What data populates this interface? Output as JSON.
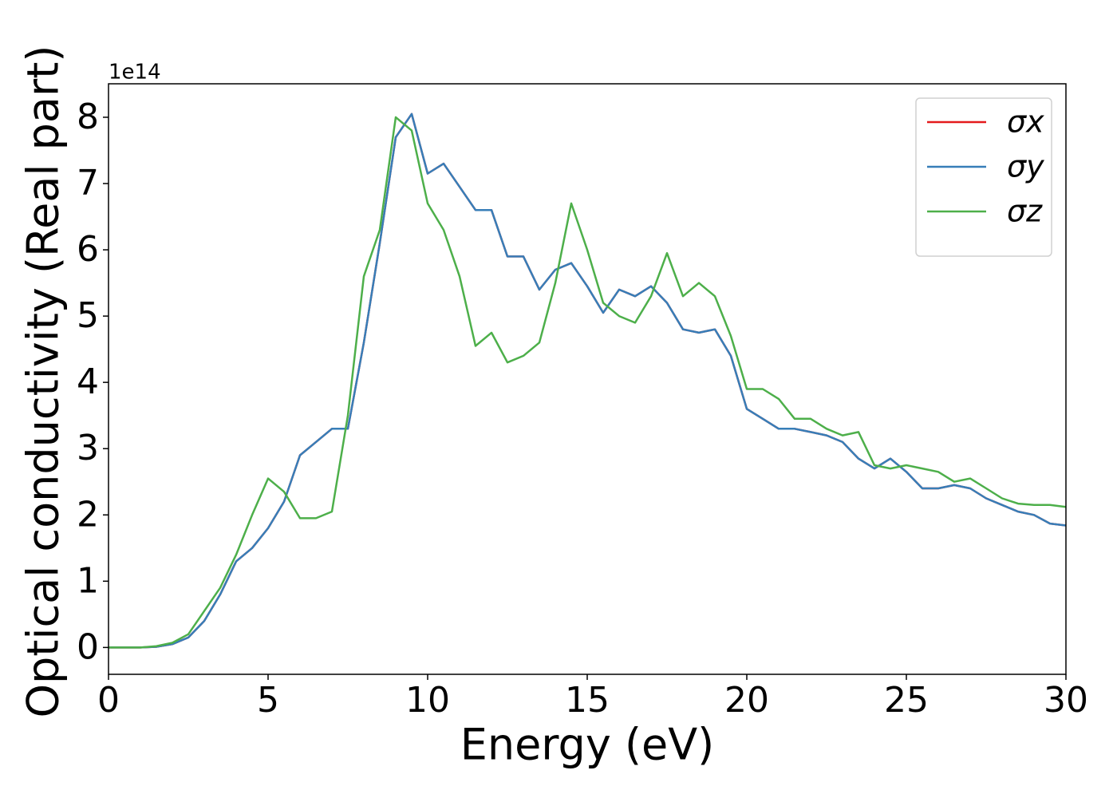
{
  "chart_data": {
    "type": "line",
    "xlabel": "Energy (eV)",
    "ylabel": "Optical conductivity (Real part)",
    "y_offset_label": "1e14",
    "x": [
      0,
      0.5,
      1,
      1.5,
      2,
      2.5,
      3,
      3.5,
      4,
      4.5,
      5,
      5.5,
      6,
      6.5,
      7,
      7.5,
      8,
      8.5,
      9,
      9.5,
      10,
      10.5,
      11,
      11.5,
      12,
      12.5,
      13,
      13.5,
      14,
      14.5,
      15,
      15.5,
      16,
      16.5,
      17,
      17.5,
      18,
      18.5,
      19,
      19.5,
      20,
      20.5,
      21,
      21.5,
      22,
      22.5,
      23,
      23.5,
      24,
      24.5,
      25,
      25.5,
      26,
      26.5,
      27,
      27.5,
      28,
      28.5,
      29,
      29.5,
      30
    ],
    "series": [
      {
        "name": "σx",
        "color": "#e41a1c",
        "values": [
          0,
          0,
          0,
          0.01,
          0.05,
          0.15,
          0.4,
          0.8,
          1.3,
          1.5,
          1.8,
          2.2,
          2.9,
          3.1,
          3.3,
          3.3,
          4.6,
          6.1,
          7.7,
          8.05,
          7.15,
          7.3,
          6.95,
          6.6,
          6.6,
          5.9,
          5.9,
          5.4,
          5.7,
          5.8,
          5.45,
          5.05,
          5.4,
          5.3,
          5.45,
          5.2,
          4.8,
          4.75,
          4.8,
          4.4,
          3.6,
          3.45,
          3.3,
          3.3,
          3.25,
          3.2,
          3.1,
          2.85,
          2.7,
          2.85,
          2.65,
          2.4,
          2.4,
          2.45,
          2.4,
          2.25,
          2.15,
          2.05,
          2.0,
          1.87,
          1.84
        ]
      },
      {
        "name": "σy",
        "color": "#377eb8",
        "values": [
          0,
          0,
          0,
          0.01,
          0.05,
          0.15,
          0.4,
          0.8,
          1.3,
          1.5,
          1.8,
          2.2,
          2.9,
          3.1,
          3.3,
          3.3,
          4.6,
          6.1,
          7.7,
          8.05,
          7.15,
          7.3,
          6.95,
          6.6,
          6.6,
          5.9,
          5.9,
          5.4,
          5.7,
          5.8,
          5.45,
          5.05,
          5.4,
          5.3,
          5.45,
          5.2,
          4.8,
          4.75,
          4.8,
          4.4,
          3.6,
          3.45,
          3.3,
          3.3,
          3.25,
          3.2,
          3.1,
          2.85,
          2.7,
          2.85,
          2.65,
          2.4,
          2.4,
          2.45,
          2.4,
          2.25,
          2.15,
          2.05,
          2.0,
          1.87,
          1.84
        ]
      },
      {
        "name": "σz",
        "color": "#4daf4a",
        "values": [
          0,
          0,
          0,
          0.02,
          0.07,
          0.2,
          0.55,
          0.9,
          1.4,
          2.0,
          2.55,
          2.35,
          1.95,
          1.95,
          2.05,
          3.5,
          5.6,
          6.3,
          8.0,
          7.8,
          6.7,
          6.3,
          5.6,
          4.55,
          4.75,
          4.3,
          4.4,
          4.6,
          5.5,
          6.7,
          6.0,
          5.2,
          5.0,
          4.9,
          5.3,
          5.95,
          5.3,
          5.5,
          5.3,
          4.7,
          3.9,
          3.9,
          3.75,
          3.45,
          3.45,
          3.3,
          3.2,
          3.25,
          2.75,
          2.7,
          2.75,
          2.7,
          2.65,
          2.5,
          2.55,
          2.4,
          2.25,
          2.17,
          2.15,
          2.15,
          2.12
        ]
      }
    ],
    "xlim": [
      0,
      30
    ],
    "xticks": [
      0,
      5,
      10,
      15,
      20,
      25,
      30
    ],
    "ylim": [
      -0.405,
      8.505
    ],
    "yticks": [
      0,
      1,
      2,
      3,
      4,
      5,
      6,
      7,
      8
    ],
    "grid": false,
    "legend": "upper right"
  }
}
